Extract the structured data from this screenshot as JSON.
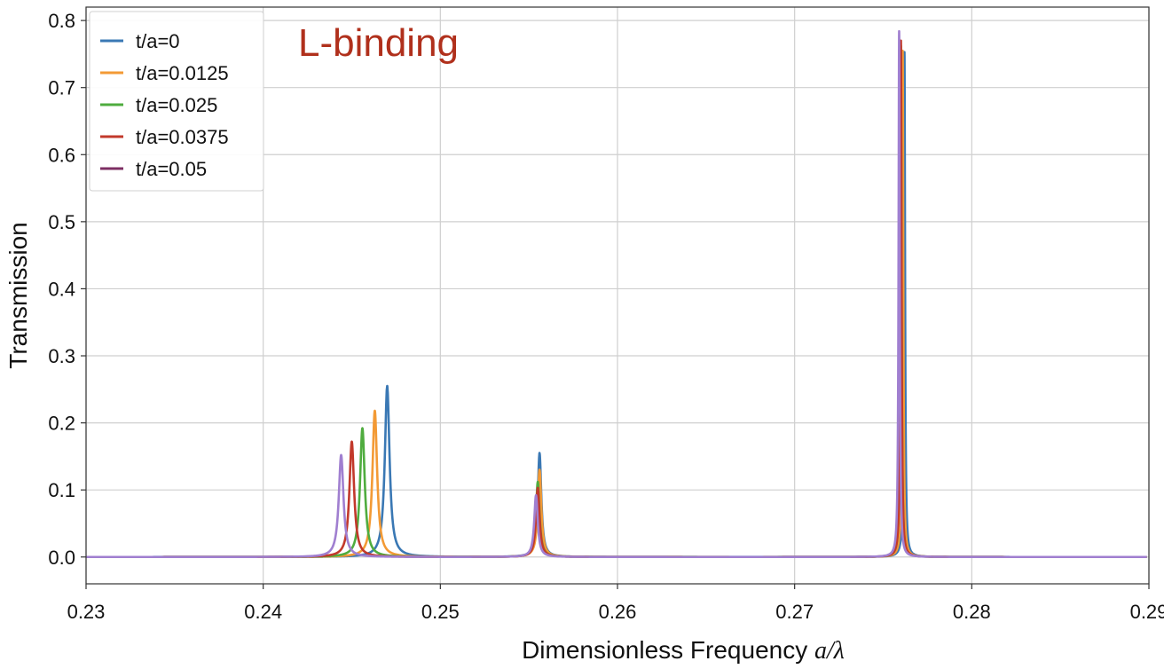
{
  "chart_data": {
    "type": "line",
    "title": "",
    "annotation": "L-binding",
    "xlabel": "Dimensionless Frequency",
    "xlabel_math": "a/λ",
    "ylabel": "Transmission",
    "xlim": [
      0.23,
      0.29
    ],
    "ylim": [
      -0.04,
      0.82
    ],
    "xticks": [
      "0.23",
      "0.24",
      "0.25",
      "0.26",
      "0.27",
      "0.28",
      "0.29"
    ],
    "yticks": [
      "0.0",
      "0.1",
      "0.2",
      "0.3",
      "0.4",
      "0.5",
      "0.6",
      "0.7",
      "0.8"
    ],
    "grid": true,
    "legend_position": "top-left",
    "colors": {
      "annotation": "#b0301c",
      "grid": "#cfcfcf"
    },
    "series": [
      {
        "name": "t/a=0",
        "color": "#3a78b4",
        "peaks": [
          {
            "x": 0.247,
            "y": 0.255,
            "w": 0.00016
          },
          {
            "x": 0.2556,
            "y": 0.155,
            "w": 0.00012
          },
          {
            "x": 0.2762,
            "y": 0.753,
            "w": 4e-05
          }
        ]
      },
      {
        "name": "t/a=0.0125",
        "color": "#f39a35",
        "peaks": [
          {
            "x": 0.2463,
            "y": 0.218,
            "w": 0.00016
          },
          {
            "x": 0.2556,
            "y": 0.13,
            "w": 0.00012
          },
          {
            "x": 0.2761,
            "y": 0.755,
            "w": 4e-05
          }
        ]
      },
      {
        "name": "t/a=0.025",
        "color": "#4fac3f",
        "peaks": [
          {
            "x": 0.2456,
            "y": 0.192,
            "w": 0.00016
          },
          {
            "x": 0.2555,
            "y": 0.112,
            "w": 0.00012
          },
          {
            "x": 0.276,
            "y": 0.762,
            "w": 4e-05
          }
        ]
      },
      {
        "name": "t/a=0.0375",
        "color": "#c2392b",
        "peaks": [
          {
            "x": 0.245,
            "y": 0.172,
            "w": 0.00016
          },
          {
            "x": 0.2555,
            "y": 0.103,
            "w": 0.00012
          },
          {
            "x": 0.276,
            "y": 0.77,
            "w": 4e-05
          }
        ]
      },
      {
        "name": "t/a=0.05",
        "color": "#7d2f63",
        "line_color": "#a07fd0",
        "peaks": [
          {
            "x": 0.2444,
            "y": 0.152,
            "w": 0.00016
          },
          {
            "x": 0.2554,
            "y": 0.092,
            "w": 0.00012
          },
          {
            "x": 0.2759,
            "y": 0.784,
            "w": 4e-05
          }
        ]
      }
    ]
  }
}
